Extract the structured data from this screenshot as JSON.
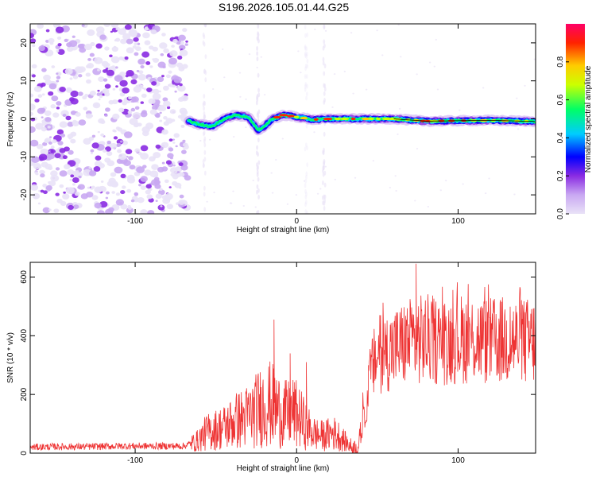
{
  "figure": {
    "title": "S196.2026.105.01.44.G25"
  },
  "chart_data": [
    {
      "type": "heatmap",
      "name": "spectrogram",
      "xlabel": "Height of straight line (km)",
      "ylabel": "Frequency (Hz)",
      "xlim": [
        -165,
        148
      ],
      "ylim": [
        -25,
        25
      ],
      "xticks": [
        -100,
        0,
        100
      ],
      "yticks": [
        -20,
        -10,
        0,
        10,
        20
      ],
      "colorbar": {
        "label": "Normalized spectral amplitude",
        "range": [
          0,
          1
        ],
        "ticks": [
          "0.0",
          "0.2",
          "0.4",
          "0.6",
          "0.8"
        ],
        "colors": [
          "#e9e2f7",
          "#c9a8f2",
          "#8a2be2",
          "#0000ff",
          "#00ccff",
          "#00ff66",
          "#ccff00",
          "#ffcc00",
          "#ff2200",
          "#ff0066"
        ]
      },
      "noise_region_x": [
        -165,
        -67
      ],
      "ridge": [
        {
          "x": -67,
          "y": -0.5
        },
        {
          "x": -60,
          "y": -1.5
        },
        {
          "x": -52,
          "y": -2
        },
        {
          "x": -45,
          "y": 0
        },
        {
          "x": -38,
          "y": 1
        },
        {
          "x": -30,
          "y": 0.5
        },
        {
          "x": -24,
          "y": -3
        },
        {
          "x": -20,
          "y": -2
        },
        {
          "x": -15,
          "y": 0
        },
        {
          "x": -8,
          "y": 1
        },
        {
          "x": 0,
          "y": 0.5
        },
        {
          "x": 10,
          "y": -0.2
        },
        {
          "x": 20,
          "y": 0
        },
        {
          "x": 40,
          "y": 0
        },
        {
          "x": 60,
          "y": 0
        },
        {
          "x": 80,
          "y": -0.6
        },
        {
          "x": 100,
          "y": -0.5
        },
        {
          "x": 120,
          "y": -0.4
        },
        {
          "x": 140,
          "y": -0.6
        },
        {
          "x": 148,
          "y": -0.7
        }
      ]
    },
    {
      "type": "line",
      "name": "snr",
      "xlabel": "Height of straight line (km)",
      "ylabel": "SNR (10 * v/v)",
      "xlim": [
        -165,
        148
      ],
      "ylim": [
        0,
        650
      ],
      "xticks": [
        -100,
        0,
        100
      ],
      "yticks": [
        0,
        200,
        400,
        600
      ],
      "color": "#ee3333",
      "x": [
        -165,
        -150,
        -130,
        -110,
        -90,
        -70,
        -62,
        -56,
        -50,
        -44,
        -38,
        -32,
        -26,
        -22,
        -18,
        -14,
        -10,
        -6,
        -2,
        2,
        6,
        10,
        14,
        18,
        22,
        26,
        30,
        34,
        38,
        42,
        46,
        50,
        54,
        58,
        62,
        70,
        80,
        90,
        100,
        110,
        120,
        130,
        140,
        148
      ],
      "y": [
        20,
        22,
        22,
        24,
        24,
        24,
        40,
        70,
        80,
        90,
        110,
        120,
        140,
        160,
        170,
        160,
        140,
        130,
        140,
        120,
        90,
        70,
        60,
        60,
        70,
        60,
        40,
        20,
        20,
        120,
        280,
        330,
        340,
        350,
        360,
        380,
        390,
        380,
        390,
        390,
        380,
        385,
        380,
        380
      ],
      "peaks": [
        {
          "x": -14,
          "y": 455
        },
        {
          "x": 74,
          "y": 645
        },
        {
          "x": 52,
          "y": 470
        },
        {
          "x": -4,
          "y": 340
        },
        {
          "x": 6,
          "y": 310
        },
        {
          "x": 140,
          "y": 505
        }
      ]
    }
  ]
}
